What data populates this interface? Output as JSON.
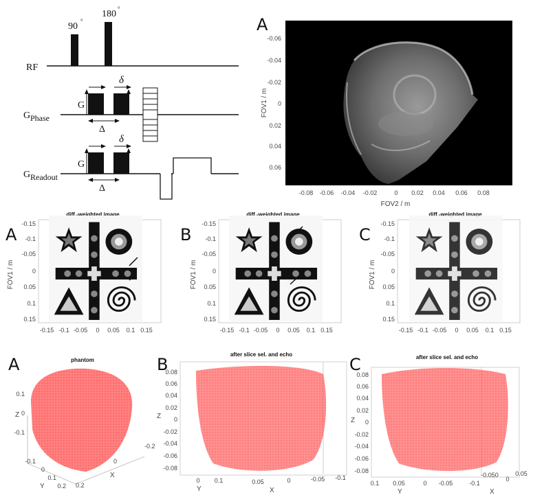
{
  "sequence": {
    "rf_label": "RF",
    "g_phase_label": "G",
    "g_phase_sub": "Phase",
    "g_readout_label": "G",
    "g_readout_sub": "Readout",
    "pulse_90": "90",
    "pulse_180": "180",
    "grad_symbol": "G",
    "delta_small": "δ",
    "delta_big": "Δ"
  },
  "top_right": {
    "letter": "A",
    "ylabel": "FOV1 / m",
    "xlabel": "FOV2 / m",
    "yticks": [
      "-0.06",
      "-0.04",
      "-0.02",
      "0",
      "0.02",
      "0.04",
      "0.06"
    ],
    "xticks": [
      "-0.08",
      "-0.06",
      "-0.04",
      "-0.02",
      "0",
      "0.02",
      "0.04",
      "0.06",
      "0.08"
    ]
  },
  "diff_panels": [
    {
      "letter": "A",
      "title": "diff.-weighted image"
    },
    {
      "letter": "B",
      "title": "diff.-weighted image"
    },
    {
      "letter": "C",
      "title": "diff.-weighted image"
    }
  ],
  "diff_axes": {
    "ylabel": "FOV1 / m",
    "yticks": [
      "-0.15",
      "-0.1",
      "-0.05",
      "0",
      "0.05",
      "0.1",
      "0.15"
    ],
    "xticks": [
      "-0.15",
      "-0.1",
      "-0.05",
      "0",
      "0.05",
      "0.1",
      "0.15"
    ]
  },
  "panels_3d": [
    {
      "letter": "A",
      "title": "phantom",
      "z_label": "Z",
      "x_label": "X",
      "y_label": "Y",
      "zticks": [
        "0.1",
        "0",
        "-0.1"
      ],
      "yticks": [
        "-0.1",
        "0",
        "0.1",
        "0.2"
      ],
      "xticks": [
        "-0.2",
        "0",
        "0.2"
      ]
    },
    {
      "letter": "B",
      "title": "after slice sel. and echo",
      "z_label": "Z",
      "x_label": "X",
      "y_label": "Y",
      "zticks": [
        "0.08",
        "0.06",
        "0.04",
        "0.02",
        "0",
        "-0.02",
        "-0.04",
        "-0.06",
        "-0.08"
      ],
      "yticks": [
        "0",
        "0.1"
      ],
      "xticks": [
        "0.05",
        "0",
        "-0.05",
        "-0.1"
      ]
    },
    {
      "letter": "C",
      "title": "after slice sel. and echo",
      "z_label": "Z",
      "x_label": "X",
      "y_label": "Y",
      "zticks": [
        "0.08",
        "0.06",
        "0.04",
        "0.02",
        "0",
        "-0.02",
        "-0.04",
        "-0.06",
        "-0.08"
      ],
      "xticks": [
        "0.1",
        "0.05",
        "0",
        "-0.05",
        "-0.1",
        "-0.050",
        "0",
        "0.05"
      ]
    }
  ]
}
